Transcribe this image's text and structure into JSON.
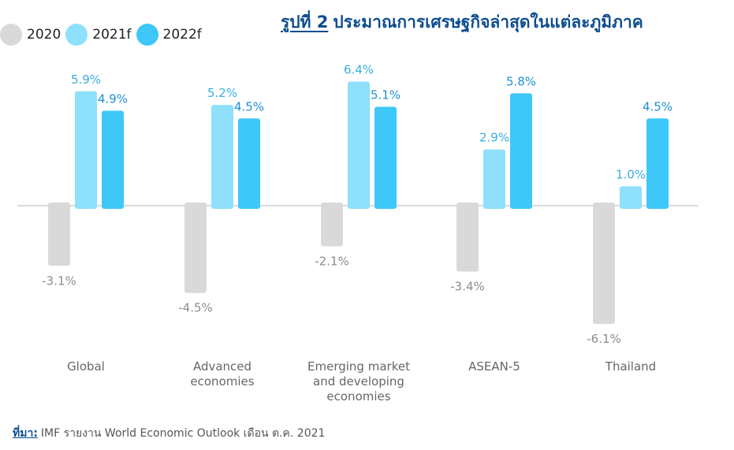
{
  "figure": {
    "title_prefix": "รูปที่ 2",
    "title": "ประมาณการเศรษฐกิจล่าสุดในแต่ละภูมิภาค",
    "source_prefix": "ที่มา:",
    "source_text": "IMF รายงาน World Economic Outlook  เดือน ต.ค. 2021"
  },
  "colors": {
    "2020": "#d9d9d9",
    "2021f": "#8ee0fb",
    "2022f": "#3dc8f7",
    "label_2020": "#8c8c8c",
    "label_2021f": "#3aaee0",
    "label_2022f": "#1f8fcf",
    "axis": "#cfcfcf",
    "category_text": "#666666"
  },
  "chart_data": {
    "type": "bar",
    "categories": [
      [
        "Global"
      ],
      [
        "Advanced",
        "economies"
      ],
      [
        "Emerging market",
        "and developing",
        "economies"
      ],
      [
        "ASEAN-5"
      ],
      [
        "Thailand"
      ]
    ],
    "series": [
      {
        "name": "2020",
        "values": [
          -3.1,
          -4.5,
          -2.1,
          -3.4,
          -6.1
        ],
        "labels": [
          "-3.1%",
          "-4.5%",
          "-2.1%",
          "-3.4%",
          "-6.1%"
        ]
      },
      {
        "name": "2021f",
        "values": [
          5.9,
          5.2,
          6.4,
          2.9,
          1.0
        ],
        "labels": [
          "5.9%",
          "5.2%",
          "6.4%",
          "2.9%",
          "1.0%"
        ]
      },
      {
        "name": "2022f",
        "values": [
          4.9,
          4.5,
          5.1,
          5.8,
          4.5
        ],
        "labels": [
          "4.9%",
          "4.5%",
          "5.1%",
          "5.8%",
          "4.5%"
        ]
      }
    ],
    "legend_position": "top-left",
    "grid": false
  }
}
